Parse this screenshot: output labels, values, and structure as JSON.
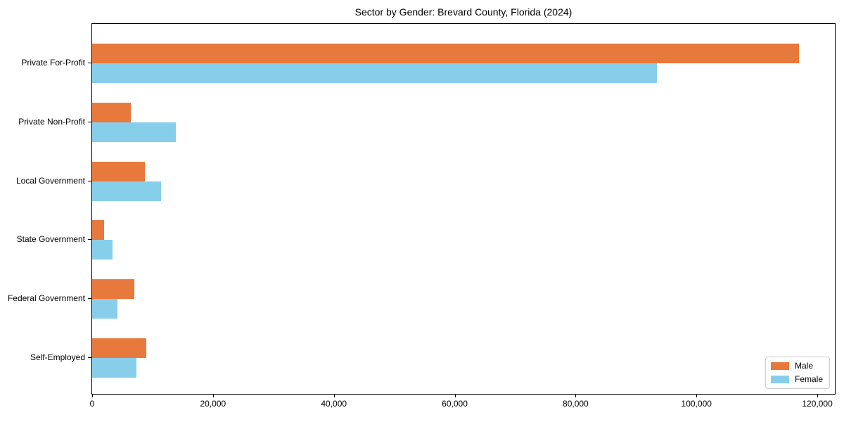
{
  "title": "Sector by Gender: Brevard County, Florida (2024)",
  "chart_data": {
    "type": "bar",
    "orientation": "horizontal",
    "title": "Sector by Gender: Brevard County, Florida (2024)",
    "categories": [
      "Private For-Profit",
      "Private Non-Profit",
      "Local Government",
      "State Government",
      "Federal Government",
      "Self-Employed"
    ],
    "series": [
      {
        "name": "Male",
        "color": "#e8793d",
        "values": [
          117000,
          6400,
          8700,
          2000,
          7000,
          9000
        ]
      },
      {
        "name": "Female",
        "color": "#87ceeb",
        "values": [
          93400,
          13800,
          11400,
          3400,
          4200,
          7300
        ]
      }
    ],
    "xlabel": "",
    "ylabel": "",
    "xlim": [
      0,
      122900
    ],
    "x_ticks": [
      0,
      20000,
      40000,
      60000,
      80000,
      100000,
      120000
    ],
    "x_tick_labels": [
      "0",
      "20,000",
      "40,000",
      "60,000",
      "80,000",
      "100,000",
      "120,000"
    ],
    "grid": false,
    "legend_position": "lower right"
  },
  "legend": {
    "items": [
      {
        "label": "Male",
        "color": "#e8793d"
      },
      {
        "label": "Female",
        "color": "#87ceeb"
      }
    ]
  }
}
